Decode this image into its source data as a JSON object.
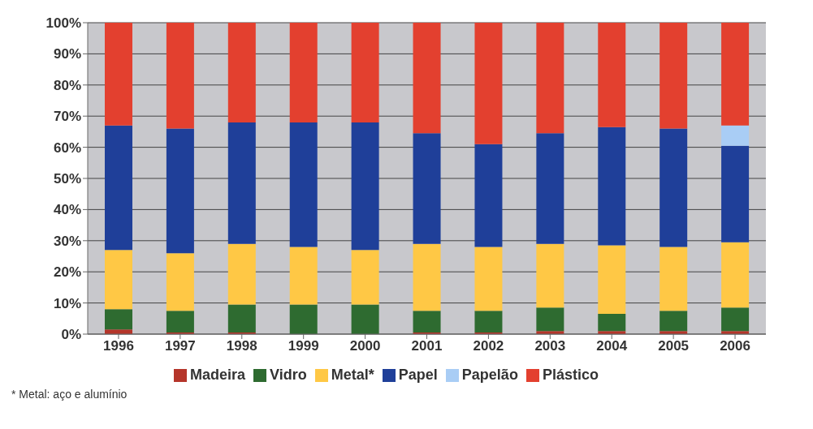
{
  "chart_data": {
    "type": "bar",
    "stacked": true,
    "categories": [
      "1996",
      "1997",
      "1998",
      "1999",
      "2000",
      "2001",
      "2002",
      "2003",
      "2004",
      "2005",
      "2006"
    ],
    "series": [
      {
        "name": "Madeira",
        "color": "#b5352a",
        "values": [
          1.5,
          0.5,
          0.5,
          0,
          0,
          0.5,
          0.5,
          1,
          1,
          1,
          1
        ]
      },
      {
        "name": "Vidro",
        "color": "#2e6b30",
        "values": [
          6.5,
          7,
          9,
          9.5,
          9.5,
          7,
          7,
          7.5,
          5.5,
          6.5,
          7.5
        ]
      },
      {
        "name": "Metal*",
        "color": "#ffc845",
        "values": [
          19,
          18.5,
          19.5,
          18.5,
          17.5,
          21.5,
          20.5,
          20.5,
          22,
          20.5,
          21
        ]
      },
      {
        "name": "Papel",
        "color": "#1f3f99",
        "values": [
          40,
          40,
          39,
          40,
          41,
          35.5,
          33,
          35.5,
          38,
          38,
          31
        ]
      },
      {
        "name": "Papelão",
        "color": "#a9cdf5",
        "values": [
          0,
          0,
          0,
          0,
          0,
          0,
          0,
          0,
          0,
          0,
          6.5
        ]
      },
      {
        "name": "Plástico",
        "color": "#e3402f",
        "values": [
          33,
          34,
          32,
          32,
          32,
          35.5,
          39,
          35.5,
          33.5,
          34,
          33
        ]
      }
    ],
    "ylim": [
      0,
      100
    ],
    "yticks": [
      {
        "value": 0,
        "label": "0%"
      },
      {
        "value": 10,
        "label": "10%"
      },
      {
        "value": 20,
        "label": "20%"
      },
      {
        "value": 30,
        "label": "30%"
      },
      {
        "value": 40,
        "label": "40%"
      },
      {
        "value": 50,
        "label": "50%"
      },
      {
        "value": 60,
        "label": "60%"
      },
      {
        "value": 70,
        "label": "70%"
      },
      {
        "value": 80,
        "label": "80%"
      },
      {
        "value": 90,
        "label": "90%"
      },
      {
        "value": 100,
        "label": "100%"
      }
    ],
    "grid": "y",
    "legend": "bottom",
    "annotations": [
      "* Metal: aço e alumínio"
    ]
  }
}
